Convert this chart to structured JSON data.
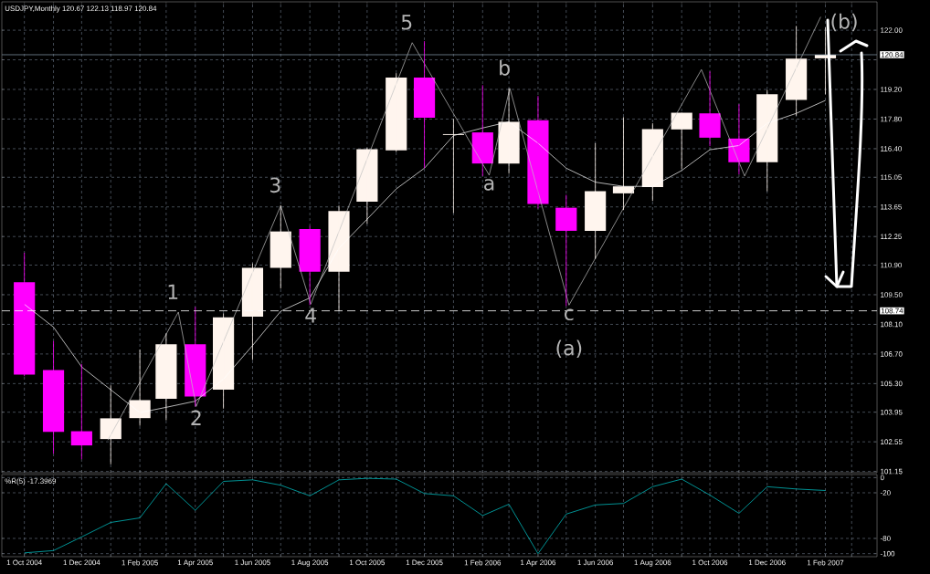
{
  "chart_data": [
    {
      "type": "candlestick",
      "title": "USDJPY,Monthly  120.67 122.13 118.97 120.84",
      "x": [
        "2004-10",
        "2004-11",
        "2004-12",
        "2005-01",
        "2005-02",
        "2005-03",
        "2005-04",
        "2005-05",
        "2005-06",
        "2005-07",
        "2005-08",
        "2005-09",
        "2005-10",
        "2005-11",
        "2005-12",
        "2006-01",
        "2006-02",
        "2006-03",
        "2006-04",
        "2006-05",
        "2006-06",
        "2006-07",
        "2006-08",
        "2006-09",
        "2006-10",
        "2006-11",
        "2006-12",
        "2007-01",
        "2007-02"
      ],
      "ohlc": [
        [
          110.09,
          111.48,
          105.65,
          105.73
        ],
        [
          105.94,
          107.31,
          101.99,
          103.02
        ],
        [
          103.05,
          106.23,
          101.73,
          102.38
        ],
        [
          102.68,
          105.22,
          101.49,
          103.66
        ],
        [
          103.67,
          106.91,
          103.31,
          104.52
        ],
        [
          104.58,
          107.67,
          103.57,
          107.16
        ],
        [
          107.16,
          108.92,
          104.22,
          104.69
        ],
        [
          105.01,
          108.61,
          104.12,
          108.43
        ],
        [
          108.46,
          110.98,
          106.42,
          110.77
        ],
        [
          110.77,
          113.71,
          109.79,
          112.49
        ],
        [
          112.6,
          112.75,
          109.01,
          110.59
        ],
        [
          110.59,
          113.71,
          108.72,
          113.45
        ],
        [
          113.9,
          116.45,
          112.85,
          116.38
        ],
        [
          116.32,
          119.97,
          116.25,
          119.76
        ],
        [
          119.76,
          121.48,
          115.48,
          117.86
        ],
        [
          117.05,
          117.81,
          113.36,
          117.09
        ],
        [
          117.17,
          119.4,
          115.11,
          115.7
        ],
        [
          115.7,
          119.25,
          115.22,
          117.67
        ],
        [
          117.74,
          118.89,
          113.57,
          113.79
        ],
        [
          113.61,
          114.22,
          108.97,
          112.52
        ],
        [
          112.52,
          116.66,
          111.2,
          114.39
        ],
        [
          114.29,
          117.89,
          113.5,
          114.62
        ],
        [
          114.59,
          117.6,
          113.93,
          117.33
        ],
        [
          117.31,
          118.1,
          115.44,
          118.1
        ],
        [
          118.07,
          120.05,
          116.52,
          116.92
        ],
        [
          116.88,
          118.5,
          115.19,
          115.76
        ],
        [
          115.76,
          119.18,
          114.39,
          118.97
        ],
        [
          118.71,
          122.2,
          117.96,
          120.66
        ],
        [
          120.67,
          122.13,
          118.97,
          120.84
        ]
      ],
      "colors": [
        "#ff00ff",
        "#ff00ff",
        "#ff00ff",
        "#fff5ee",
        "#fff5ee",
        "#fff5ee",
        "#ff00ff",
        "#fff5ee",
        "#fff5ee",
        "#fff5ee",
        "#ff00ff",
        "#fff5ee",
        "#fff5ee",
        "#fff5ee",
        "#ff00ff",
        "#fff5ee",
        "#ff00ff",
        "#fff5ee",
        "#ff00ff",
        "#ff00ff",
        "#fff5ee",
        "#fff5ee",
        "#fff5ee",
        "#fff5ee",
        "#ff00ff",
        "#ff00ff",
        "#fff5ee",
        "#fff5ee",
        "#fff5ee"
      ],
      "series": [
        {
          "type": "line",
          "color": "#ffffff",
          "values": [
            109.05,
            107.97,
            106.09,
            105.01,
            103.93,
            104.18,
            104.47,
            105.51,
            107.1,
            108.72,
            109.35,
            111.7,
            113.07,
            114.5,
            115.48,
            117.02,
            117.38,
            117.67,
            116.66,
            115.48,
            114.82,
            114.62,
            114.62,
            115.37,
            116.35,
            116.55,
            117.6,
            118.07,
            118.68
          ]
        },
        {
          "type": "line",
          "color": "#c0c0c0",
          "x": [
            "2004-12-29",
            "2005-03-14",
            "2005-04-02",
            "2005-07-01",
            "2005-08-02",
            "2005-11-18",
            "2006-02-08",
            "2006-03-02",
            "2006-05-04",
            "2006-09-22",
            "2006-11-07",
            "2007-01-27"
          ],
          "values": [
            102.63,
            108.68,
            104.22,
            113.71,
            109.05,
            121.41,
            115.15,
            119.25,
            109.01,
            120.14,
            115.11,
            122.63
          ]
        }
      ],
      "xlim": [
        "2004-09-07",
        "2007-03-28"
      ],
      "xticks": [
        {
          "value": "2004-10",
          "label": null
        },
        {
          "value": "2004-11",
          "label": null
        },
        {
          "value": "2004-12",
          "label": null
        },
        {
          "value": "2005-01",
          "label": null
        },
        {
          "value": "2005-02",
          "label": null
        },
        {
          "value": "2005-03",
          "label": null
        },
        {
          "value": "2005-04",
          "label": null
        },
        {
          "value": "2005-05",
          "label": null
        },
        {
          "value": "2005-06",
          "label": null
        },
        {
          "value": "2005-07",
          "label": null
        },
        {
          "value": "2005-08",
          "label": null
        },
        {
          "value": "2005-09",
          "label": null
        },
        {
          "value": "2005-10",
          "label": null
        },
        {
          "value": "2005-11",
          "label": null
        },
        {
          "value": "2005-12",
          "label": null
        },
        {
          "value": "2006-01",
          "label": null
        },
        {
          "value": "2006-02",
          "label": null
        },
        {
          "value": "2006-03",
          "label": null
        },
        {
          "value": "2006-04",
          "label": null
        },
        {
          "value": "2006-05",
          "label": null
        },
        {
          "value": "2006-06",
          "label": null
        },
        {
          "value": "2006-07",
          "label": null
        },
        {
          "value": "2006-08",
          "label": null
        },
        {
          "value": "2006-09",
          "label": null
        },
        {
          "value": "2006-10",
          "label": null
        },
        {
          "value": "2006-11",
          "label": null
        },
        {
          "value": "2006-12",
          "label": null
        },
        {
          "value": "2007-01",
          "label": null
        },
        {
          "value": "2007-02",
          "label": null
        },
        {
          "value": "2007-03",
          "label": null
        }
      ],
      "ylim": [
        101.09,
        123.34
      ],
      "yticks": [
        {
          "value": 101.15,
          "label": "101.15"
        },
        {
          "value": 102.55,
          "label": "102.55"
        },
        {
          "value": 103.95,
          "label": "103.95"
        },
        {
          "value": 105.3,
          "label": "105.30"
        },
        {
          "value": 106.7,
          "label": "106.70"
        },
        {
          "value": 108.1,
          "label": "108.10"
        },
        {
          "value": 109.5,
          "label": "109.50"
        },
        {
          "value": 110.9,
          "label": "110.90"
        },
        {
          "value": 112.25,
          "label": "112.25"
        },
        {
          "value": 113.65,
          "label": "113.65"
        },
        {
          "value": 115.05,
          "label": "115.05"
        },
        {
          "value": 116.4,
          "label": "116.40"
        },
        {
          "value": 117.8,
          "label": "117.80"
        },
        {
          "value": 119.2,
          "label": "119.20"
        },
        {
          "value": 120.6,
          "label": null
        },
        {
          "value": 122.0,
          "label": "122.00"
        }
      ],
      "tick_labels": "y",
      "grid": true,
      "ref_lines": [
        {
          "axis": "y",
          "value": 108.74,
          "label": "108.74",
          "color": "#ffffff",
          "line_style": "dashed"
        },
        {
          "axis": "y",
          "value": 120.84,
          "label": "120.84",
          "color": "#778899"
        }
      ],
      "annotations": [
        {
          "text": "1",
          "x": "2005-03-14",
          "y": 108.68
        },
        {
          "text": "2",
          "x": "2005-04-02",
          "y": 104.22
        },
        {
          "text": "3",
          "x": "2005-07-01",
          "y": 113.71
        },
        {
          "text": "4",
          "x": "2005-08-02",
          "y": 109.05
        },
        {
          "text": "5",
          "x": "2005-11-18",
          "y": 121.41
        },
        {
          "text": "a",
          "x": "2006-02-08",
          "y": 115.15
        },
        {
          "text": "b",
          "x": "2006-03-02",
          "y": 119.25
        },
        {
          "text": "c",
          "x": "2006-05-04",
          "y": 109.01
        },
        {
          "text": "(a)",
          "x": "2006-05-04",
          "y": 109.01
        },
        {
          "text": "(b)",
          "x": "2007-01-27",
          "y": 122.63
        }
      ]
    },
    {
      "type": "line",
      "title": "%R(5) -17.3969",
      "color": "#00ced1",
      "x": [
        "2004-10",
        "2004-11",
        "2004-12",
        "2005-01",
        "2005-02",
        "2005-03",
        "2005-04",
        "2005-05",
        "2005-06",
        "2005-07",
        "2005-08",
        "2005-09",
        "2005-10",
        "2005-11",
        "2005-12",
        "2006-01",
        "2006-02",
        "2006-03",
        "2006-04",
        "2006-05",
        "2006-06",
        "2006-07",
        "2006-08",
        "2006-09",
        "2006-10",
        "2006-11",
        "2006-12",
        "2007-01",
        "2007-02"
      ],
      "values": [
        -99,
        -96,
        -78,
        -59,
        -53,
        -8,
        -43,
        -5,
        -3,
        -10,
        -24,
        -3,
        -1,
        -2,
        -21,
        -24,
        -50,
        -35,
        -100,
        -48,
        -36,
        -34,
        -12,
        -2,
        -23,
        -47,
        -12,
        -15,
        -17
      ],
      "xlim": [
        "2004-09-07",
        "2007-03-28"
      ],
      "xticks": [
        {
          "value": "2004-10",
          "label": "1 Oct 2004"
        },
        {
          "value": "2004-11",
          "label": null
        },
        {
          "value": "2004-12",
          "label": "1 Dec 2004"
        },
        {
          "value": "2005-01",
          "label": null
        },
        {
          "value": "2005-02",
          "label": "1 Feb 2005"
        },
        {
          "value": "2005-03",
          "label": null
        },
        {
          "value": "2005-04",
          "label": "1 Apr 2005"
        },
        {
          "value": "2005-05",
          "label": null
        },
        {
          "value": "2005-06",
          "label": "1 Jun 2005"
        },
        {
          "value": "2005-07",
          "label": null
        },
        {
          "value": "2005-08",
          "label": "1 Aug 2005"
        },
        {
          "value": "2005-09",
          "label": null
        },
        {
          "value": "2005-10",
          "label": "1 Oct 2005"
        },
        {
          "value": "2005-11",
          "label": null
        },
        {
          "value": "2005-12",
          "label": "1 Dec 2005"
        },
        {
          "value": "2006-01",
          "label": null
        },
        {
          "value": "2006-02",
          "label": "1 Feb 2006"
        },
        {
          "value": "2006-03",
          "label": null
        },
        {
          "value": "2006-04",
          "label": "1 Apr 2006"
        },
        {
          "value": "2006-05",
          "label": null
        },
        {
          "value": "2006-06",
          "label": "1 Jun 2006"
        },
        {
          "value": "2006-07",
          "label": null
        },
        {
          "value": "2006-08",
          "label": "1 Aug 2006"
        },
        {
          "value": "2006-09",
          "label": null
        },
        {
          "value": "2006-10",
          "label": "1 Oct 2006"
        },
        {
          "value": "2006-11",
          "label": null
        },
        {
          "value": "2006-12",
          "label": "1 Dec 2006"
        },
        {
          "value": "2007-01",
          "label": null
        },
        {
          "value": "2007-02",
          "label": "1 Feb 2007"
        },
        {
          "value": "2007-03",
          "label": null
        }
      ],
      "ylim": [
        -104,
        4
      ],
      "yticks": [
        0,
        -20,
        -80,
        -100
      ],
      "grid": true
    }
  ]
}
